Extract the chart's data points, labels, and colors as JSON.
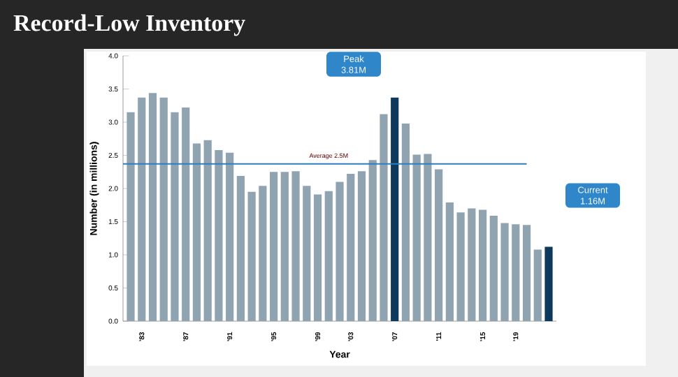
{
  "chart_data": {
    "type": "bar",
    "title": "Record-Low Inventory",
    "xlabel": "Year",
    "ylabel": "Number (in millions)",
    "categories": [
      null,
      "'83",
      null,
      null,
      null,
      "'87",
      null,
      null,
      null,
      "'91",
      null,
      null,
      null,
      "'95",
      null,
      null,
      null,
      "'99",
      null,
      null,
      "'03",
      null,
      null,
      null,
      "'07",
      null,
      null,
      null,
      "'11",
      null,
      null,
      null,
      "'15",
      null,
      null,
      "'19",
      null,
      null,
      null
    ],
    "values": [
      3.15,
      3.37,
      3.44,
      3.37,
      3.15,
      3.22,
      2.68,
      2.73,
      2.58,
      2.54,
      2.19,
      1.95,
      2.04,
      2.25,
      2.25,
      2.26,
      2.04,
      1.91,
      1.96,
      2.1,
      2.22,
      2.26,
      2.43,
      3.12,
      3.37,
      2.98,
      2.51,
      2.52,
      2.29,
      1.79,
      1.64,
      1.7,
      1.68,
      1.59,
      1.48,
      1.46,
      1.45,
      1.08,
      1.12
    ],
    "colors": [
      "#8fa3b1",
      "#8fa3b1",
      "#8fa3b1",
      "#8fa3b1",
      "#8fa3b1",
      "#8fa3b1",
      "#8fa3b1",
      "#8fa3b1",
      "#8fa3b1",
      "#8fa3b1",
      "#8fa3b1",
      "#8fa3b1",
      "#8fa3b1",
      "#8fa3b1",
      "#8fa3b1",
      "#8fa3b1",
      "#8fa3b1",
      "#8fa3b1",
      "#8fa3b1",
      "#8fa3b1",
      "#8fa3b1",
      "#8fa3b1",
      "#8fa3b1",
      "#8fa3b1",
      "#0d3a5c",
      "#8fa3b1",
      "#8fa3b1",
      "#8fa3b1",
      "#8fa3b1",
      "#8fa3b1",
      "#8fa3b1",
      "#8fa3b1",
      "#8fa3b1",
      "#8fa3b1",
      "#8fa3b1",
      "#8fa3b1",
      "#8fa3b1",
      "#8fa3b1",
      "#0d3a5c"
    ],
    "ylim": [
      0,
      4
    ],
    "yticks": [
      {
        "value": 0,
        "label": "0.0"
      },
      {
        "value": 0.5,
        "label": "0.5"
      },
      {
        "value": 1,
        "label": "1.0"
      },
      {
        "value": 1.5,
        "label": "1.5"
      },
      {
        "value": 2,
        "label": "2.0"
      },
      {
        "value": 2.5,
        "label": "2.5"
      },
      {
        "value": 3,
        "label": "3.0"
      },
      {
        "value": 3.5,
        "label": "3.5"
      },
      {
        "value": 4,
        "label": "4.0"
      }
    ],
    "ref_lines": [
      {
        "axis": "y",
        "value": 2.37,
        "label": "Average 2.5M",
        "color": "#2e7dbf"
      }
    ],
    "annotations": [
      "Peak 3.81M",
      "Current 1.16M"
    ]
  }
}
